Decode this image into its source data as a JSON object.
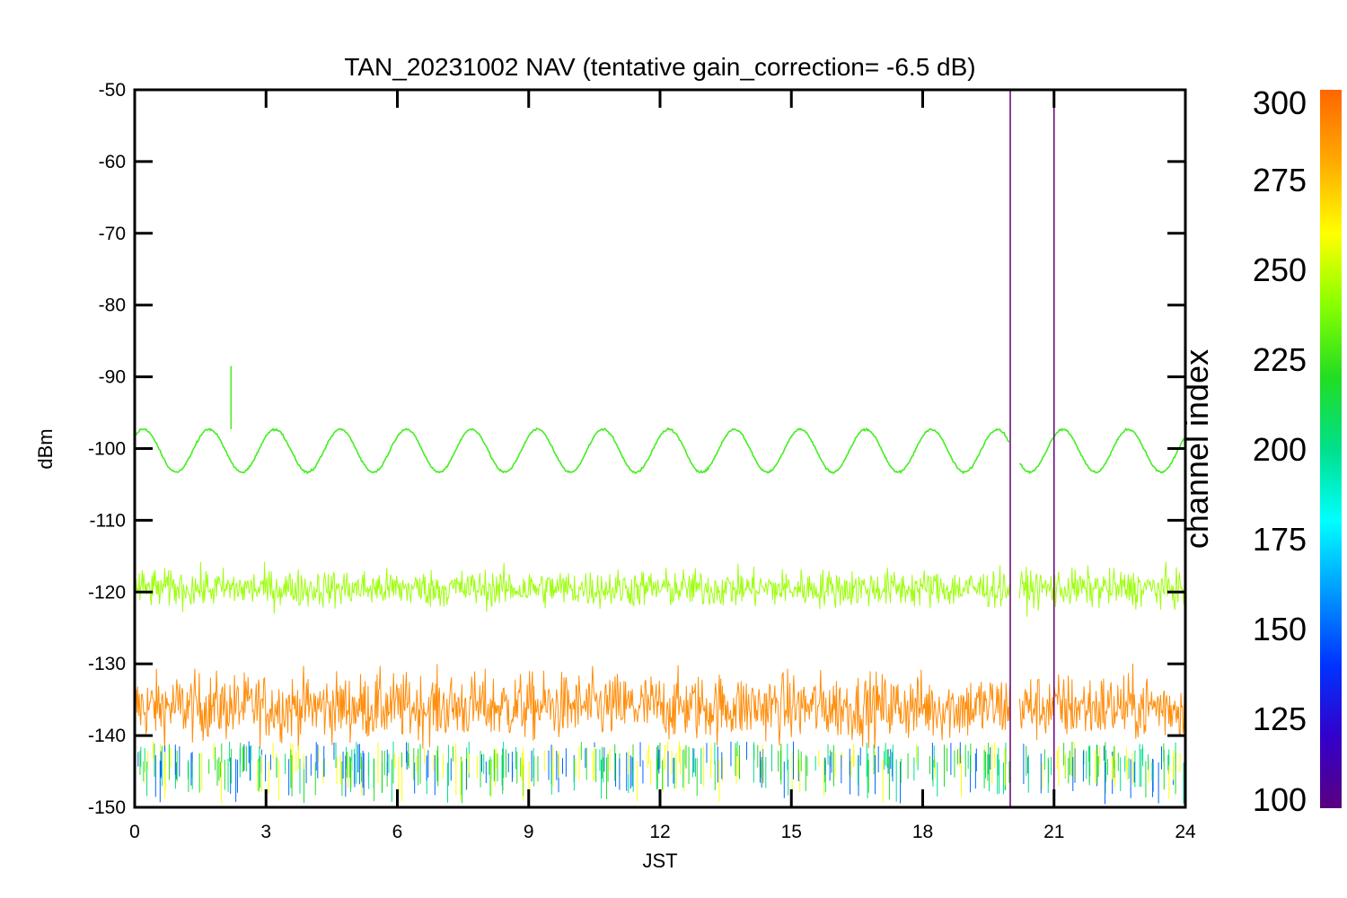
{
  "chart_data": {
    "type": "line",
    "title": "TAN_20231002 NAV (tentative gain_correction= -6.5 dB)",
    "xlabel": "JST",
    "ylabel": "dBm",
    "xlim": [
      0,
      24
    ],
    "ylim": [
      -150,
      -50
    ],
    "x_ticks": [
      "0",
      "3",
      "6",
      "9",
      "12",
      "15",
      "18",
      "21",
      "24"
    ],
    "y_ticks": [
      "-50",
      "-60",
      "-70",
      "-80",
      "-90",
      "-100",
      "-110",
      "-120",
      "-130",
      "-140",
      "-150"
    ],
    "series": [
      {
        "channel": 240,
        "color": "#44ee22",
        "kind": "sinusoid",
        "center": -100.3,
        "amplitude": 3.0,
        "period_hours": 1.5,
        "spike": {
          "x": 2.2,
          "y": -88.5
        }
      },
      {
        "channel": 255,
        "color": "#99ff00",
        "kind": "noise-band",
        "center": -119.5,
        "spread": 4.5
      },
      {
        "channel": 290,
        "color": "#ff8800",
        "kind": "noise-band",
        "center": -136,
        "spread": 8
      }
    ],
    "gap": {
      "x_start": 20.0,
      "x_end": 20.2
    },
    "vertical_lines": [
      {
        "x": 20.0,
        "color": "#660077"
      },
      {
        "x": 21.0,
        "color": "#660077"
      }
    ],
    "colorbar": {
      "label": "channel index",
      "min": 100,
      "max": 300,
      "ticks": [
        "100",
        "125",
        "150",
        "175",
        "200",
        "225",
        "250",
        "275",
        "300"
      ],
      "colors": [
        "#5a0080",
        "#3300cc",
        "#0033ff",
        "#0099ff",
        "#00ffff",
        "#00e08a",
        "#22dd22",
        "#88ff00",
        "#ffff00",
        "#ffaa00",
        "#ff6600"
      ]
    }
  }
}
